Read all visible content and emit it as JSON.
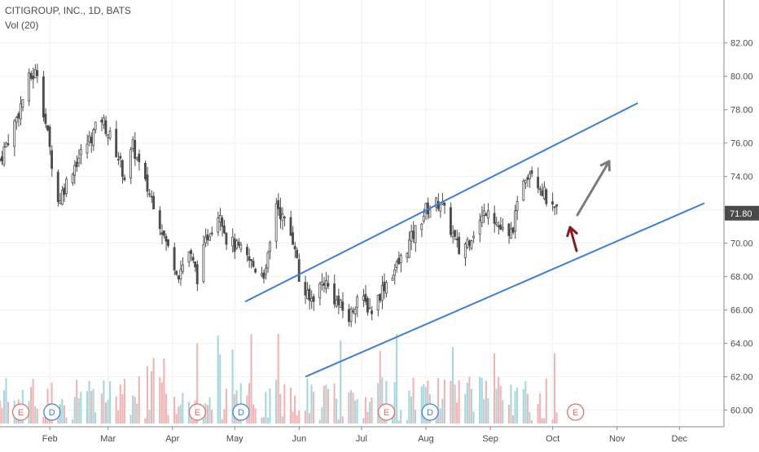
{
  "header": {
    "symbol_line": "CITIGROUP, INC., 1D, BATS",
    "volume_line": "Vol (20)"
  },
  "colors": {
    "up": "#4c4c4c",
    "down": "#4c4c4c",
    "vol_up": "#a4d6dc",
    "vol_down": "#f1b2b2",
    "channel": "#3b7fd9",
    "arrow_up": "#7b7b7b",
    "arrow_support": "#8c1a1a",
    "event_e": "#e46a6a",
    "event_d": "#3b7fd9",
    "current_price_bg": "#4a4a4a"
  },
  "chart_data": {
    "type": "candlestick",
    "title": "CITIGROUP, INC., 1D, BATS",
    "indicator": "Vol (20)",
    "ylim": [
      59.2,
      83.5
    ],
    "y_ticks": [
      "60.00",
      "62.00",
      "64.00",
      "66.00",
      "68.00",
      "70.00",
      "72.00",
      "74.00",
      "76.00",
      "78.00",
      "80.00",
      "82.00"
    ],
    "current_price_label": "71.80",
    "current_price": 71.8,
    "x_ticks": [
      "Feb",
      "Mar",
      "Apr",
      "May",
      "Jun",
      "Jul",
      "Aug",
      "Sep",
      "Oct",
      "Nov",
      "Dec"
    ],
    "x_range": [
      "2018-01-08",
      "2018-12-15"
    ],
    "price_path": [
      [
        "2018-01-08",
        75.0
      ],
      [
        "2018-01-16",
        77.5
      ],
      [
        "2018-01-22",
        79.8
      ],
      [
        "2018-01-26",
        80.3
      ],
      [
        "2018-01-29",
        78.0
      ],
      [
        "2018-02-05",
        72.5
      ],
      [
        "2018-02-12",
        74.5
      ],
      [
        "2018-02-20",
        76.2
      ],
      [
        "2018-02-26",
        77.5
      ],
      [
        "2018-03-05",
        75.5
      ],
      [
        "2018-03-09",
        74.0
      ],
      [
        "2018-03-13",
        75.8
      ],
      [
        "2018-03-19",
        73.5
      ],
      [
        "2018-03-23",
        72.5
      ],
      [
        "2018-03-29",
        70.0
      ],
      [
        "2018-04-04",
        68.2
      ],
      [
        "2018-04-09",
        69.5
      ],
      [
        "2018-04-13",
        68.0
      ],
      [
        "2018-04-18",
        70.5
      ],
      [
        "2018-04-24",
        72.0
      ],
      [
        "2018-04-27",
        70.3
      ],
      [
        "2018-05-04",
        69.5
      ],
      [
        "2018-05-11",
        68.5
      ],
      [
        "2018-05-16",
        68.2
      ],
      [
        "2018-05-21",
        72.5
      ],
      [
        "2018-05-24",
        71.5
      ],
      [
        "2018-05-30",
        70.0
      ],
      [
        "2018-06-01",
        67.8
      ],
      [
        "2018-06-06",
        66.5
      ],
      [
        "2018-06-13",
        67.8
      ],
      [
        "2018-06-19",
        66.5
      ],
      [
        "2018-06-25",
        65.5
      ],
      [
        "2018-06-29",
        66.8
      ],
      [
        "2018-07-06",
        66.0
      ],
      [
        "2018-07-12",
        67.5
      ],
      [
        "2018-07-19",
        68.8
      ],
      [
        "2018-07-26",
        70.5
      ],
      [
        "2018-08-01",
        72.0
      ],
      [
        "2018-08-08",
        72.5
      ],
      [
        "2018-08-14",
        70.5
      ],
      [
        "2018-08-17",
        69.5
      ],
      [
        "2018-08-22",
        70.3
      ],
      [
        "2018-08-28",
        71.5
      ],
      [
        "2018-08-31",
        72.3
      ],
      [
        "2018-09-05",
        71.0
      ],
      [
        "2018-09-10",
        70.2
      ],
      [
        "2018-09-13",
        71.5
      ],
      [
        "2018-09-17",
        74.0
      ],
      [
        "2018-09-21",
        74.5
      ],
      [
        "2018-09-26",
        73.2
      ],
      [
        "2018-10-01",
        71.9
      ],
      [
        "2018-10-03",
        71.8
      ]
    ],
    "volume_range": [
      1,
      20
    ],
    "channel_lines": [
      {
        "from": [
          "2018-05-06",
          66.5
        ],
        "to": [
          "2018-11-11",
          78.4
        ]
      },
      {
        "from": [
          "2018-06-04",
          62.0
        ],
        "to": [
          "2018-12-13",
          72.4
        ]
      }
    ],
    "events": [
      {
        "label": "E",
        "date": "2018-01-18"
      },
      {
        "label": "D",
        "date": "2018-02-02"
      },
      {
        "label": "E",
        "date": "2018-04-13"
      },
      {
        "label": "D",
        "date": "2018-05-04"
      },
      {
        "label": "E",
        "date": "2018-07-13"
      },
      {
        "label": "D",
        "date": "2018-08-03"
      },
      {
        "label": "E",
        "date": "2018-10-12"
      }
    ]
  }
}
